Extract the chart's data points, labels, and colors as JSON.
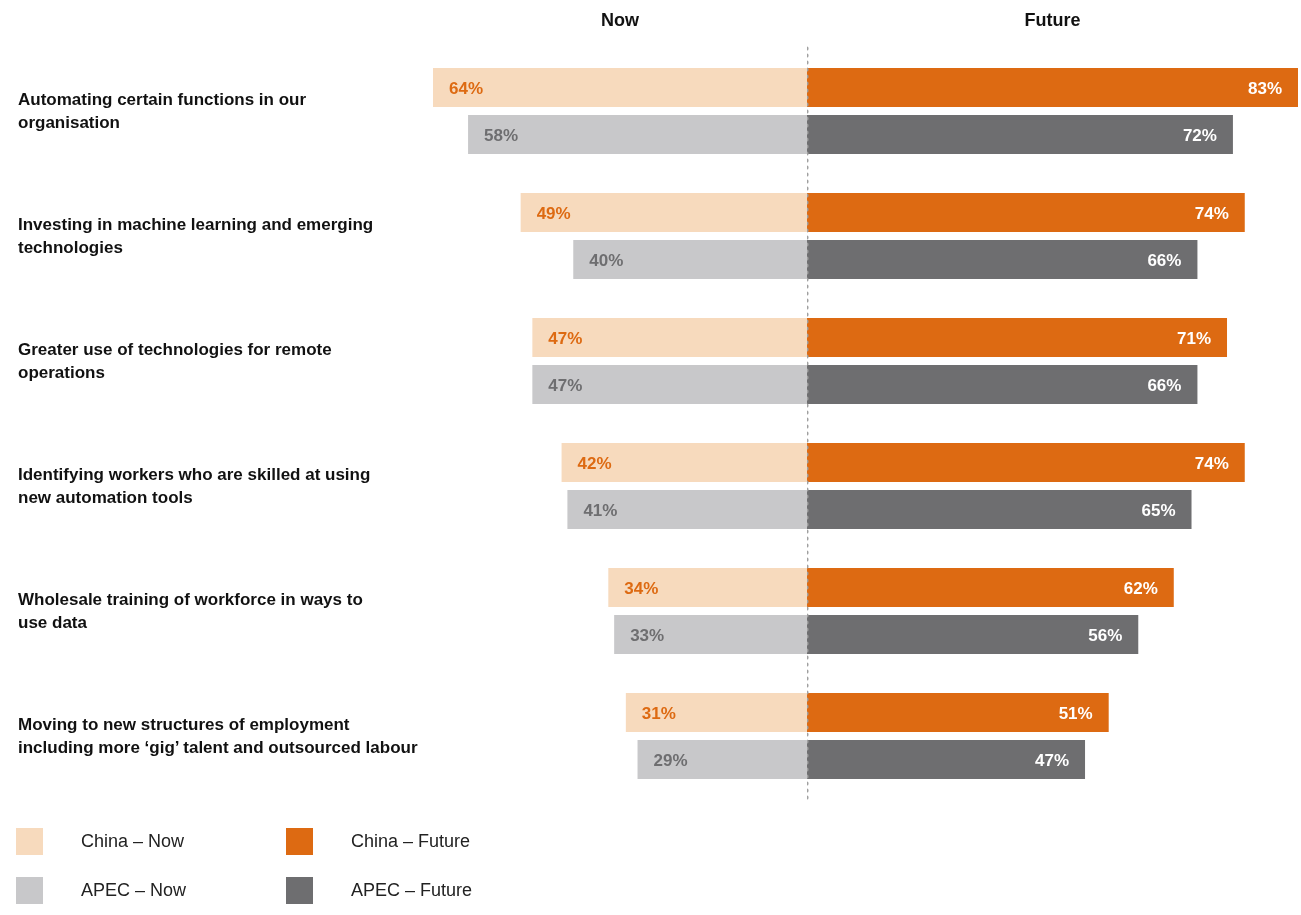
{
  "chart_data": [
    {
      "type": "bar",
      "orientation": "horizontal",
      "title": "Now",
      "legend": "bottom left",
      "tick_labels": "y",
      "categories": [
        "Automating certain functions in our\norganisation",
        "Investing in machine learning and emerging\ntechnologies",
        "Greater use of technologies for remote\noperations",
        "Identifying workers who are skilled at using\nnew automation tools",
        "Wholesale training of workforce in ways to\nuse data",
        "Moving to new structures of employment\nincluding more ‘gig’ talent and outsourced labour"
      ],
      "xlim": [
        64,
        0
      ],
      "series": [
        {
          "name": "China – Now",
          "color": "#f7dabd",
          "values": [
            64,
            49,
            47,
            42,
            34,
            31
          ],
          "value_labels": [
            "64%",
            "49%",
            "47%",
            "42%",
            "34%",
            "31%"
          ]
        },
        {
          "name": "APEC – Now",
          "color": "#c8c8ca",
          "values": [
            58,
            40,
            47,
            41,
            33,
            29
          ],
          "value_labels": [
            "58%",
            "40%",
            "47%",
            "41%",
            "33%",
            "29%"
          ]
        }
      ]
    },
    {
      "type": "bar",
      "orientation": "horizontal",
      "title": "Future",
      "legend": "bottom left",
      "tick_labels": false,
      "categories": [
        null,
        null,
        null,
        null,
        null,
        null
      ],
      "xlim": [
        0,
        83
      ],
      "ref_lines": [
        {
          "axis": "x",
          "value": 0,
          "color": "#a0a0a0",
          "line_style": "dotted"
        }
      ],
      "series": [
        {
          "name": "China – Future",
          "color": "#dd6a12",
          "values": [
            83,
            74,
            71,
            74,
            62,
            51
          ],
          "value_labels": [
            "83%",
            "74%",
            "71%",
            "74%",
            "62%",
            "51%"
          ]
        },
        {
          "name": "APEC – Future",
          "color": "#6e6e70",
          "values": [
            72,
            66,
            66,
            65,
            56,
            47
          ],
          "value_labels": [
            "72%",
            "66%",
            "66%",
            "65%",
            "56%",
            "47%"
          ]
        }
      ]
    }
  ]
}
